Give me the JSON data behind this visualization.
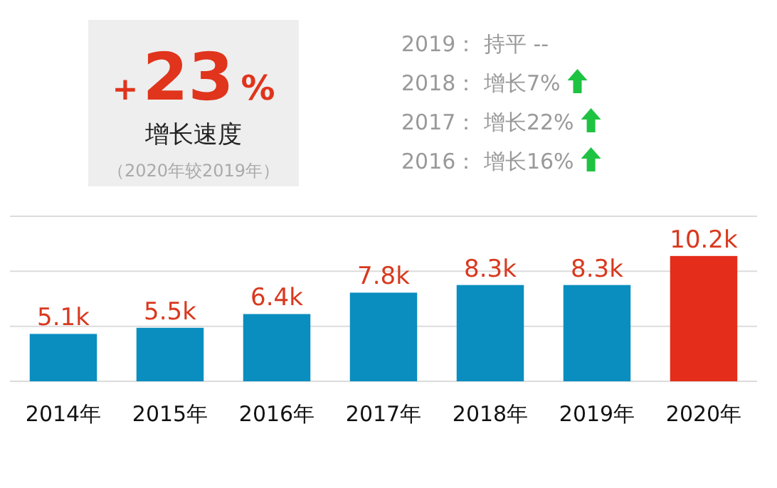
{
  "chart_data": {
    "type": "bar",
    "categories": [
      "2014年",
      "2015年",
      "2016年",
      "2017年",
      "2018年",
      "2019年",
      "2020年"
    ],
    "values": [
      5.1,
      5.5,
      6.4,
      7.8,
      8.3,
      8.3,
      10.2
    ],
    "value_labels": [
      "5.1k",
      "5.5k",
      "6.4k",
      "7.8k",
      "8.3k",
      "8.3k",
      "10.2k"
    ],
    "colors": [
      "#0a8ebf",
      "#0a8ebf",
      "#0a8ebf",
      "#0a8ebf",
      "#0a8ebf",
      "#0a8ebf",
      "#e42d1a"
    ],
    "ylim": [
      2,
      12.8
    ],
    "yticks": [
      {
        "value": 2,
        "label": null
      },
      {
        "value": 5.6,
        "label": null
      },
      {
        "value": 9.2,
        "label": null
      },
      {
        "value": 12.8,
        "label": null
      }
    ],
    "grid": "y",
    "tick_labels": "x",
    "annotations": [
      "+23%",
      "增长速度",
      "（2020年较2019年）",
      "2019：  持平 --",
      "2018：  增长7%",
      "2017：  增长22%",
      "2016：  增长16%"
    ]
  }
}
